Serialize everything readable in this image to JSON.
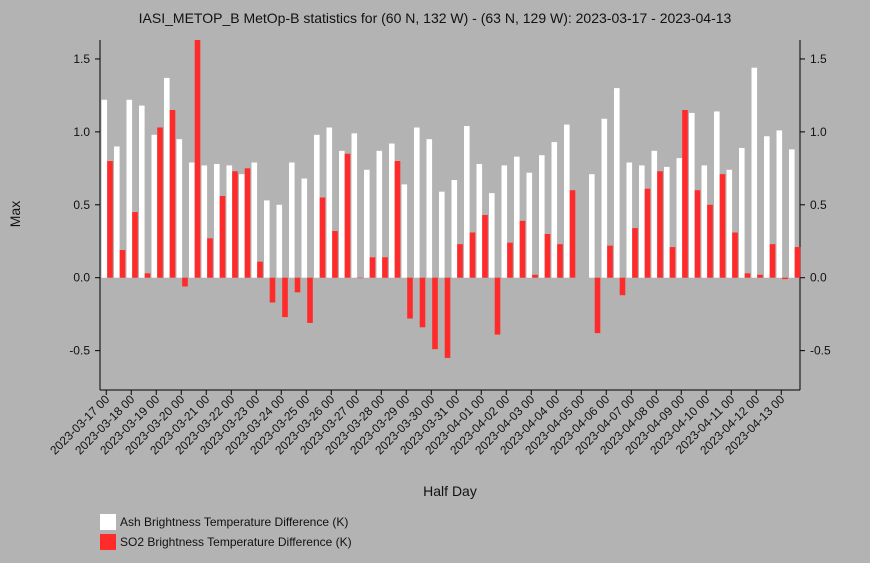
{
  "chart_data": {
    "type": "bar",
    "title": "IASI_METOP_B MetOp-B statistics for (60 N, 132 W) - (63 N, 129 W): 2023-03-17 - 2023-04-13",
    "xlabel": "Half Day",
    "ylabel": "Max",
    "ylim": [
      -0.77,
      1.63
    ],
    "yticks": [
      -0.5,
      0.0,
      0.5,
      1.0,
      1.5
    ],
    "ytick_labels": [
      "-0.5",
      "0.0",
      "0.5",
      "1.0",
      "1.5"
    ],
    "x_tick_labels": [
      "2023-03-17 00",
      "2023-03-18 00",
      "2023-03-19 00",
      "2023-03-20 00",
      "2023-03-21 00",
      "2023-03-22 00",
      "2023-03-23 00",
      "2023-03-24 00",
      "2023-03-25 00",
      "2023-03-26 00",
      "2023-03-27 00",
      "2023-03-28 00",
      "2023-03-29 00",
      "2023-03-30 00",
      "2023-03-31 00",
      "2023-04-01 00",
      "2023-04-02 00",
      "2023-04-03 00",
      "2023-04-04 00",
      "2023-04-05 00",
      "2023-04-06 00",
      "2023-04-07 00",
      "2023-04-08 00",
      "2023-04-09 00",
      "2023-04-10 00",
      "2023-04-11 00",
      "2023-04-12 00",
      "2023-04-13 00"
    ],
    "x_tick_first_bin": 0,
    "x_tick_every": 2,
    "grid": false,
    "legend_position": "bottom-left",
    "series": [
      {
        "name": "Ash Brightness Temperature Difference (K)",
        "color": "#ffffff",
        "values": [
          1.22,
          0.9,
          1.22,
          1.18,
          0.98,
          1.37,
          0.95,
          0.79,
          0.77,
          0.78,
          0.77,
          0.71,
          0.79,
          0.53,
          0.5,
          0.79,
          0.68,
          0.98,
          1.03,
          0.87,
          0.99,
          0.74,
          0.87,
          0.92,
          0.64,
          1.03,
          0.95,
          0.59,
          0.67,
          1.04,
          0.78,
          0.58,
          0.77,
          0.83,
          0.72,
          0.84,
          0.93,
          1.05,
          null,
          0.71,
          1.09,
          1.3,
          0.79,
          0.77,
          0.87,
          0.76,
          0.82,
          1.13,
          0.77,
          1.14,
          0.74,
          0.89,
          1.44,
          0.97,
          1.01,
          0.88
        ]
      },
      {
        "name": "SO2 Brightness Temperature Difference (K)",
        "color": "#ff2a2a",
        "values": [
          0.8,
          0.19,
          0.45,
          0.03,
          1.03,
          1.15,
          -0.06,
          1.64,
          0.27,
          0.56,
          0.73,
          0.75,
          0.11,
          -0.17,
          -0.27,
          -0.1,
          -0.31,
          0.55,
          0.32,
          0.85,
          0.0,
          0.14,
          0.14,
          0.8,
          -0.28,
          -0.34,
          -0.49,
          -0.55,
          0.23,
          0.31,
          0.43,
          -0.39,
          0.24,
          0.39,
          0.02,
          0.3,
          0.23,
          0.6,
          null,
          -0.38,
          0.22,
          -0.12,
          0.34,
          0.61,
          0.73,
          0.21,
          1.15,
          0.6,
          0.5,
          0.71,
          0.31,
          0.03,
          0.02,
          0.23,
          -0.01,
          0.21
        ]
      }
    ]
  }
}
